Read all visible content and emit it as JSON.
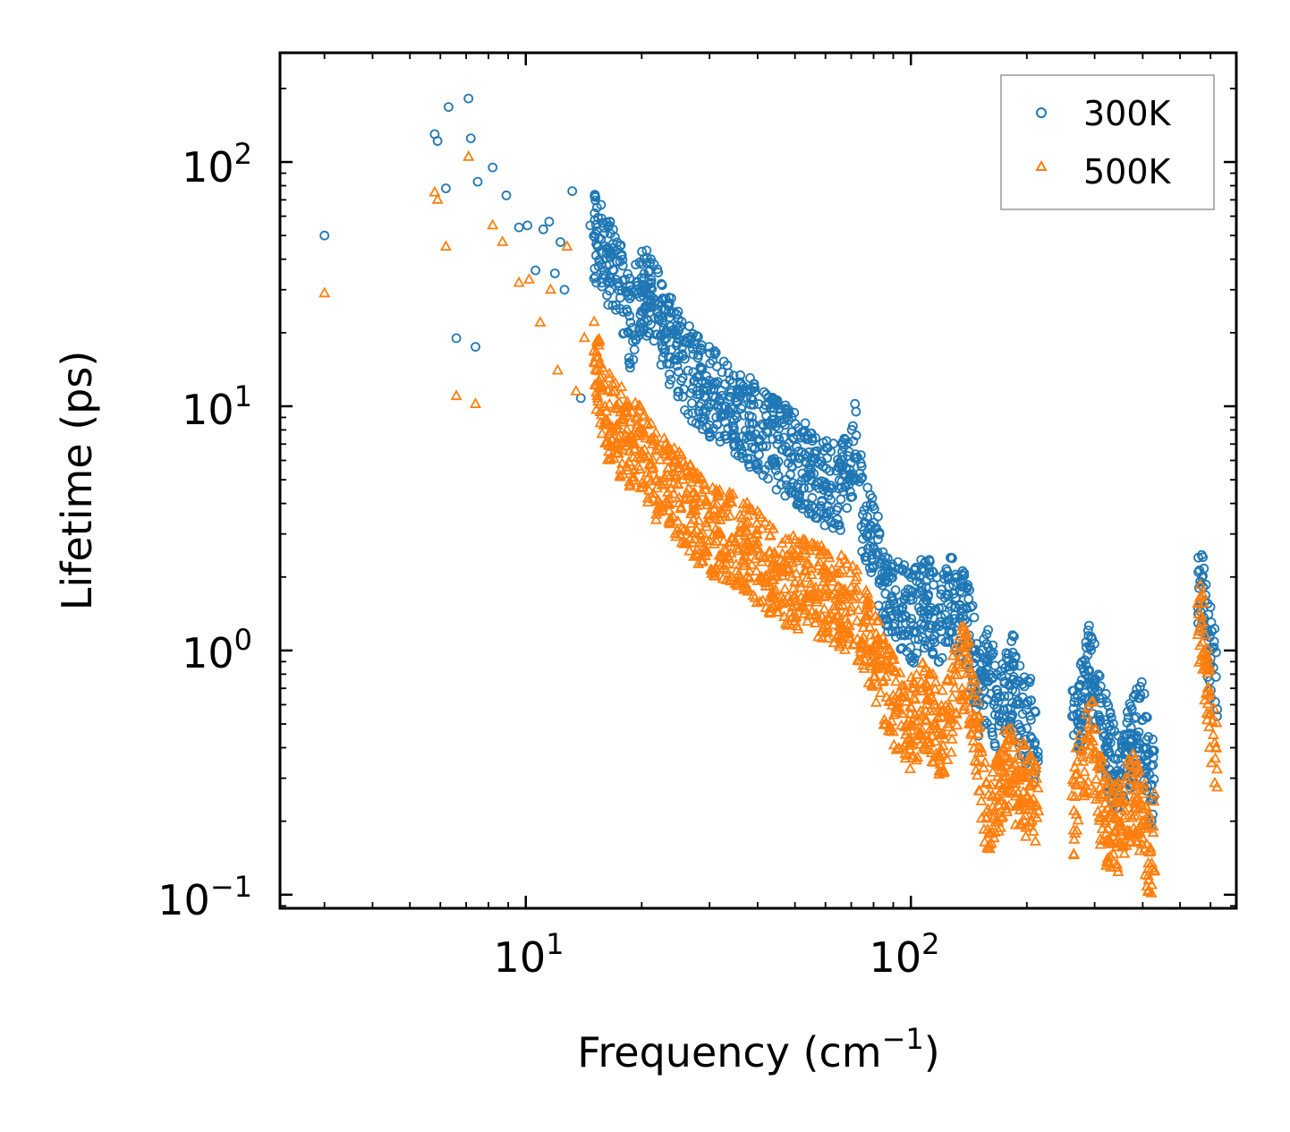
{
  "chart_data": {
    "type": "scatter",
    "title": "",
    "xlabel": "Frequency (cm",
    "xlabel_exponent": "−1",
    "xlabel_suffix": ")",
    "ylabel": "Lifetime (ps)",
    "xscale": "log",
    "yscale": "log",
    "xlim": [
      2.3,
      700
    ],
    "ylim": [
      0.088,
      280
    ],
    "x_ticks": [
      {
        "value": 10,
        "base": "10",
        "exponent": "1"
      },
      {
        "value": 100,
        "base": "10",
        "exponent": "2"
      }
    ],
    "y_ticks": [
      {
        "value": 0.1,
        "base": "10",
        "exponent": "−1"
      },
      {
        "value": 1,
        "base": "10",
        "exponent": "0"
      },
      {
        "value": 10,
        "base": "10",
        "exponent": "1"
      },
      {
        "value": 100,
        "base": "10",
        "exponent": "2"
      }
    ],
    "legend": {
      "position": "top-right",
      "entries": [
        "300K",
        "500K"
      ]
    },
    "grid": false,
    "colors": {
      "series_300K": "#1f77b4",
      "series_500K": "#ff7f0e"
    },
    "series": [
      {
        "name": "300K",
        "marker": "circle",
        "x": [
          3.0,
          5.8,
          5.9,
          6.2,
          6.3,
          7.1,
          7.2,
          7.5,
          8.2,
          8.9,
          9.6,
          10.1,
          10.6,
          11.1,
          11.5,
          11.9,
          12.3,
          12.6,
          13.2,
          13.9,
          14.7,
          6.6,
          7.4,
          16.5,
          17.4,
          18.7,
          20.0,
          21.2,
          23.1,
          25.0,
          26.4,
          28.0,
          30.6,
          33.0,
          35.0,
          38.1,
          41.2,
          45.0,
          50.0,
          55.0,
          60.2,
          65.1,
          70.0,
          72.1,
          75.0,
          80.1,
          85.0,
          90.0,
          95.0,
          100.0,
          105.0,
          110.0,
          115.0,
          120.0,
          125.0,
          130.0,
          135.0,
          140.0,
          145.0,
          150.0,
          155.0,
          160.0,
          165.0,
          170.0,
          175.0,
          180.0,
          185.0,
          190.0,
          195.0,
          200.0,
          205.0,
          210.0,
          265.0,
          270.0,
          280.0,
          290.0,
          300.0,
          310.0,
          320.0,
          340.0,
          360.0,
          380.0,
          400.0,
          410.0,
          420.0,
          560.0,
          570.0,
          580.0,
          590.0,
          600.0,
          610.0,
          620.0
        ],
        "y": [
          50,
          130,
          122,
          78,
          168,
          182,
          125,
          83,
          95,
          73,
          54,
          55,
          36,
          53,
          57,
          35,
          47,
          30,
          76,
          10.8,
          55,
          19,
          17.5,
          38,
          32,
          22,
          30,
          27,
          20,
          16,
          14,
          12.5,
          11,
          10,
          9.2,
          8.5,
          7.6,
          7.0,
          6.2,
          5.5,
          4.8,
          4.6,
          5.2,
          7.6,
          3.6,
          2.6,
          2.0,
          1.6,
          1.5,
          1.3,
          1.5,
          1.6,
          1.45,
          1.2,
          1.7,
          1.5,
          1.45,
          1.3,
          1.0,
          0.65,
          0.75,
          0.8,
          0.62,
          0.55,
          0.65,
          0.72,
          0.78,
          0.62,
          0.55,
          0.48,
          0.52,
          0.42,
          0.45,
          0.55,
          0.6,
          0.82,
          0.72,
          0.52,
          0.45,
          0.3,
          0.38,
          0.45,
          0.52,
          0.35,
          0.28,
          1.8,
          2.0,
          1.6,
          1.2,
          1.0,
          0.85,
          0.78
        ]
      },
      {
        "name": "500K",
        "marker": "triangle",
        "x": [
          3.0,
          5.8,
          5.9,
          6.2,
          6.6,
          7.1,
          7.4,
          8.2,
          8.7,
          9.6,
          10.2,
          10.9,
          11.6,
          12.1,
          12.8,
          13.5,
          14.2,
          15.1,
          16.2,
          17.3,
          18.5,
          20.0,
          21.3,
          23.0,
          25.0,
          27.0,
          29.5,
          32.0,
          35.0,
          38.0,
          41.0,
          45.0,
          50.0,
          55.0,
          60.0,
          65.0,
          70.0,
          75.0,
          80.0,
          85.0,
          90.0,
          95.0,
          100.0,
          105.0,
          110.0,
          115.0,
          120.0,
          125.0,
          130.0,
          135.0,
          140.0,
          145.0,
          150.0,
          160.0,
          165.0,
          170.0,
          175.0,
          180.0,
          185.0,
          190.0,
          195.0,
          200.0,
          205.0,
          210.0,
          265.0,
          270.0,
          280.0,
          290.0,
          300.0,
          310.0,
          320.0,
          340.0,
          360.0,
          380.0,
          400.0,
          410.0,
          420.0,
          560.0,
          570.0,
          580.0,
          590.0,
          600.0,
          610.0,
          620.0
        ],
        "y": [
          29,
          75,
          70,
          45,
          11,
          105,
          10.2,
          55,
          47,
          32,
          33,
          22,
          30,
          14,
          45,
          11.5,
          19,
          15,
          9.5,
          8,
          7.3,
          6.5,
          5.5,
          4.8,
          4.2,
          3.7,
          3.2,
          3.0,
          2.8,
          2.6,
          2.3,
          2.0,
          1.9,
          1.8,
          1.7,
          1.6,
          1.5,
          1.3,
          1.0,
          0.75,
          0.62,
          0.55,
          0.5,
          0.55,
          0.6,
          0.5,
          0.45,
          0.5,
          0.7,
          0.85,
          0.8,
          0.65,
          0.38,
          0.18,
          0.22,
          0.28,
          0.32,
          0.35,
          0.3,
          0.26,
          0.3,
          0.25,
          0.28,
          0.23,
          0.22,
          0.28,
          0.35,
          0.45,
          0.38,
          0.25,
          0.2,
          0.18,
          0.22,
          0.25,
          0.2,
          0.16,
          0.15,
          1.2,
          1.3,
          0.9,
          0.7,
          0.55,
          0.45,
          0.4
        ]
      }
    ]
  }
}
